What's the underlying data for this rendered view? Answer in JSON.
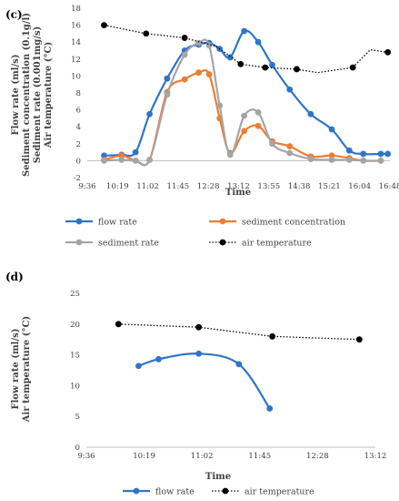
{
  "chart_data": [
    {
      "panel": "(c)",
      "type": "line",
      "xlabel": "Time",
      "ylabel": [
        "Flow rate (ml/s)",
        "Sediment concentration (0.1g/l)",
        "Sediment rate (0.001mg/s)",
        "Air temperature (°C)"
      ],
      "ylim": [
        -2,
        18
      ],
      "yticks": [
        -2,
        0,
        2,
        4,
        6,
        8,
        10,
        12,
        14,
        16,
        18
      ],
      "xlim": [
        576,
        1008
      ],
      "xticks": [
        "9:36",
        "10:19",
        "11:02",
        "11:45",
        "12:28",
        "13:12",
        "13:55",
        "14:38",
        "15:21",
        "16:04",
        "16:48"
      ],
      "legend_position": "bottom",
      "series": [
        {
          "name": "flow rate",
          "color": "#2e75c8",
          "style": "solid",
          "x": [
            "10:00",
            "10:25",
            "10:45",
            "11:05",
            "11:30",
            "11:55",
            "12:15",
            "12:30",
            "12:45",
            "13:00",
            "13:20",
            "13:40",
            "14:00",
            "14:25",
            "14:55",
            "15:25",
            "15:50",
            "16:10",
            "16:35",
            "16:45"
          ],
          "y": [
            0.6,
            0.7,
            1.0,
            5.5,
            9.7,
            13.0,
            13.7,
            13.9,
            13.2,
            12.2,
            15.3,
            14.0,
            11.3,
            8.4,
            5.5,
            3.7,
            1.2,
            0.8,
            0.8,
            0.8
          ]
        },
        {
          "name": "sediment concentration",
          "color": "#ed7d31",
          "style": "solid",
          "x": [
            "10:00",
            "10:25",
            "10:45",
            "11:05",
            "11:30",
            "11:55",
            "12:15",
            "12:30",
            "12:45",
            "13:00",
            "13:20",
            "13:40",
            "14:00",
            "14:25",
            "14:55",
            "15:25",
            "15:50",
            "16:10",
            "16:35"
          ],
          "y": [
            0.1,
            0.6,
            0.0,
            0.1,
            8.1,
            9.6,
            10.4,
            10.2,
            5.0,
            0.9,
            3.5,
            4.1,
            2.3,
            1.7,
            0.5,
            0.6,
            0.3,
            0.0,
            0.0
          ]
        },
        {
          "name": "sediment rate",
          "color": "#a5a5a5",
          "style": "solid",
          "x": [
            "10:00",
            "10:25",
            "10:45",
            "11:05",
            "11:30",
            "11:55",
            "12:15",
            "12:30",
            "12:45",
            "13:00",
            "13:20",
            "13:40",
            "14:00",
            "14:25",
            "14:55",
            "15:25",
            "15:50",
            "16:10",
            "16:35"
          ],
          "y": [
            0.0,
            0.1,
            0.0,
            0.1,
            7.8,
            12.5,
            13.9,
            13.6,
            6.5,
            0.7,
            5.3,
            5.7,
            2.0,
            0.9,
            0.2,
            0.1,
            0.1,
            0.0,
            0.0
          ]
        },
        {
          "name": "air temperature",
          "color": "#000000",
          "style": "dotted",
          "x": [
            "10:00",
            "11:00",
            "11:55",
            "12:40",
            "13:15",
            "13:50",
            "14:35",
            "15:05",
            "15:55",
            "16:20",
            "16:45"
          ],
          "y": [
            16.0,
            15.0,
            14.5,
            13.5,
            11.4,
            11.0,
            10.8,
            10.4,
            11.0,
            13.1,
            12.8
          ],
          "markers_at": [
            "10:00",
            "11:00",
            "11:55",
            "13:15",
            "13:50",
            "14:35",
            "15:55",
            "16:45"
          ]
        }
      ]
    },
    {
      "panel": "(d)",
      "type": "line",
      "xlabel": "Time",
      "ylabel": [
        "Flow rate (ml/s)",
        "Air temperature (°C)"
      ],
      "ylim": [
        0,
        25
      ],
      "yticks": [
        0,
        5,
        10,
        15,
        20,
        25
      ],
      "xlim": [
        576,
        792
      ],
      "xticks": [
        "9:36",
        "10:19",
        "11:02",
        "11:45",
        "12:28",
        "13:12"
      ],
      "legend_position": "bottom",
      "series": [
        {
          "name": "flow rate",
          "color": "#2e75c8",
          "style": "solid",
          "x": [
            "10:15",
            "10:30",
            "11:00",
            "11:30",
            "11:53"
          ],
          "y": [
            13.2,
            14.3,
            15.2,
            13.5,
            6.3
          ],
          "markers_at": [
            "10:15",
            "10:30",
            "11:00",
            "11:30",
            "11:53"
          ]
        },
        {
          "name": "air temperature",
          "color": "#000000",
          "style": "dotted",
          "x": [
            "10:00",
            "11:00",
            "11:55",
            "13:00"
          ],
          "y": [
            20.0,
            19.5,
            18.0,
            17.5
          ],
          "markers_at": [
            "10:00",
            "11:00",
            "11:55",
            "13:00"
          ]
        }
      ]
    }
  ]
}
